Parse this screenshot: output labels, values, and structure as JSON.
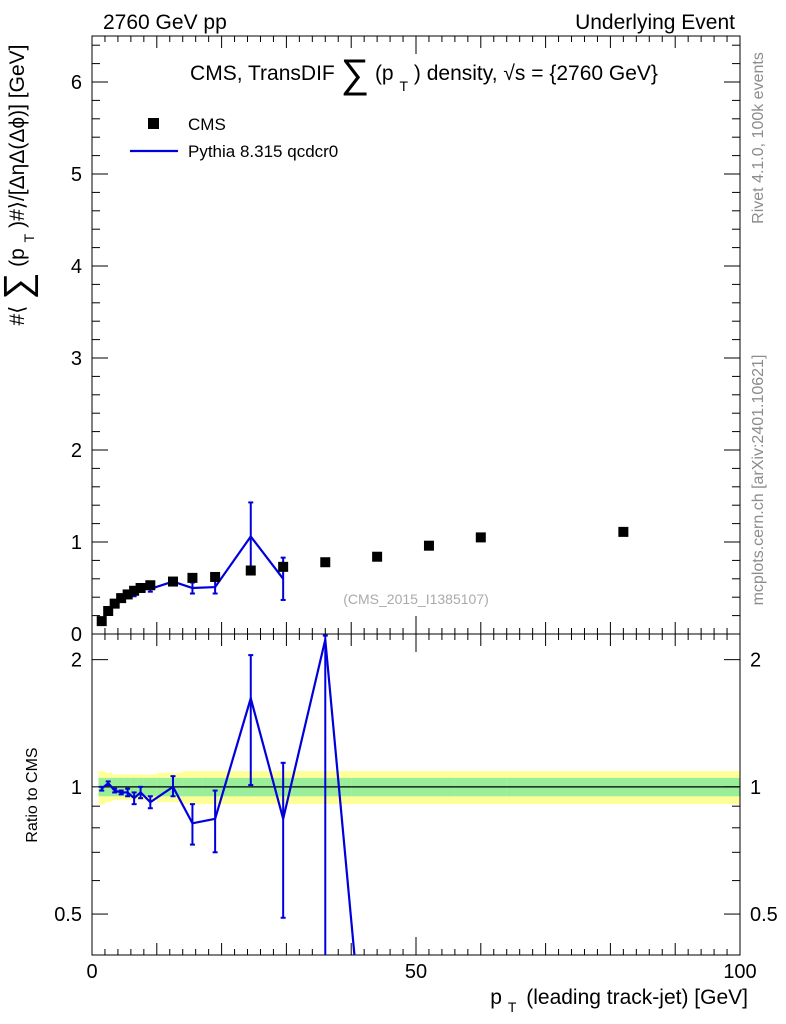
{
  "header": {
    "left": "2760 GeV pp",
    "right": "Underlying Event"
  },
  "side_labels": {
    "rivet": "Rivet 4.1.0,  100k events",
    "mcplots": "mcplots.cern.ch [arXiv:2401.10621]"
  },
  "chart_data": [
    {
      "type": "scatter",
      "panel": "main",
      "title": "CMS, TransDIF ∑(pT) density, √s = {2760 GeV}",
      "title_parts": {
        "prefix": "CMS, TransDIF",
        "sum": "∑",
        "p_open": "(p",
        "sub": "T",
        "p_close": ")",
        "suffix": "density, √s = {2760 GeV}"
      },
      "ylabel": "#⟨∑(pT)#⟩/[ΔηΔ(Δϕ)] [GeV]",
      "ylabel_parts": {
        "a": "#⟨",
        "sum": "∑",
        "b": "(p",
        "sub": "T",
        "c": ")#⟩/[ΔηΔ(Δϕ)] [GeV]"
      },
      "xlim": [
        0,
        100
      ],
      "ylim": [
        0,
        6.5
      ],
      "yticks": [
        0,
        1,
        2,
        3,
        4,
        5,
        6
      ],
      "ytick_labels": [
        "0",
        "1",
        "2",
        "3",
        "4",
        "5",
        "6"
      ],
      "watermark": "(CMS_2015_I1385107)",
      "legend": {
        "position": "top-left",
        "entries": [
          "CMS",
          "Pythia 8.315 qcdcr0"
        ]
      },
      "series": [
        {
          "name": "CMS",
          "style": "markers",
          "color": "#000000",
          "x": [
            1.5,
            2.5,
            3.5,
            4.5,
            5.5,
            6.5,
            7.5,
            9.0,
            12.5,
            15.5,
            19.0,
            24.5,
            29.5,
            36.0,
            44.0,
            52.0,
            60.0,
            82.0
          ],
          "y": [
            0.14,
            0.25,
            0.33,
            0.39,
            0.43,
            0.47,
            0.5,
            0.53,
            0.57,
            0.61,
            0.62,
            0.69,
            0.73,
            0.78,
            0.84,
            0.96,
            1.05,
            1.11
          ]
        },
        {
          "name": "Pythia 8.315 qcdcr0",
          "style": "line",
          "color": "#0000dd",
          "x": [
            1.5,
            2.5,
            3.5,
            4.5,
            5.5,
            6.5,
            7.5,
            9.0,
            12.5,
            15.5,
            19.0,
            24.5,
            29.5
          ],
          "y": [
            0.14,
            0.26,
            0.32,
            0.38,
            0.42,
            0.44,
            0.49,
            0.49,
            0.57,
            0.5,
            0.51,
            1.06,
            0.6
          ],
          "yerr": [
            0.02,
            0.02,
            0.02,
            0.02,
            0.02,
            0.03,
            0.03,
            0.03,
            0.04,
            0.06,
            0.07,
            0.37,
            0.23
          ]
        }
      ]
    },
    {
      "type": "line",
      "panel": "ratio",
      "ylabel": "Ratio to CMS",
      "xlabel": "pT (leading track-jet) [GeV]",
      "xlabel_parts": {
        "p": "p",
        "sub": "T",
        "rest": "(leading track-jet) [GeV]"
      },
      "xlim": [
        0,
        100
      ],
      "ylim": [
        0.4,
        2.3
      ],
      "xticks": [
        0,
        50,
        100
      ],
      "xtick_labels": [
        "0",
        "50",
        "100"
      ],
      "yticks": [
        0.5,
        1,
        2
      ],
      "ytick_labels": [
        "0.5",
        "1",
        "2"
      ],
      "bands": {
        "bin_edges": [
          1,
          2,
          3,
          4,
          5,
          6,
          7,
          8,
          10,
          14,
          17,
          21,
          28,
          31,
          40,
          48,
          56,
          64,
          100
        ],
        "yellow_halfwidth": [
          0.09,
          0.08,
          0.07,
          0.07,
          0.07,
          0.07,
          0.07,
          0.07,
          0.08,
          0.09,
          0.09,
          0.09,
          0.09,
          0.09,
          0.09,
          0.09,
          0.09,
          0.09
        ],
        "green_halfwidth": [
          0.05,
          0.05,
          0.05,
          0.05,
          0.05,
          0.05,
          0.05,
          0.05,
          0.05,
          0.05,
          0.05,
          0.05,
          0.05,
          0.05,
          0.05,
          0.05,
          0.05,
          0.05
        ],
        "yellow_color": "#ffff99",
        "green_color": "#99ee99"
      },
      "series": [
        {
          "name": "Pythia 8.315 qcdcr0 / CMS",
          "color": "#0000dd",
          "x": [
            1.5,
            2.5,
            3.5,
            4.5,
            5.5,
            6.5,
            7.5,
            9.0,
            12.5,
            15.5,
            19.0,
            24.5,
            29.5,
            36.0,
            40.5
          ],
          "y": [
            0.99,
            1.02,
            0.98,
            0.97,
            0.97,
            0.94,
            0.97,
            0.92,
            1.0,
            0.82,
            0.84,
            1.62,
            0.84,
            2.23,
            0.4
          ],
          "yerr_low": [
            0.01,
            0.01,
            0.01,
            0.01,
            0.02,
            0.03,
            0.03,
            0.03,
            0.05,
            0.09,
            0.14,
            0.61,
            0.35,
            1.9,
            0
          ],
          "yerr_high": [
            0.01,
            0.01,
            0.01,
            0.01,
            0.02,
            0.03,
            0.03,
            0.03,
            0.06,
            0.09,
            0.14,
            0.43,
            0.3,
            0.05,
            0
          ]
        }
      ]
    }
  ]
}
